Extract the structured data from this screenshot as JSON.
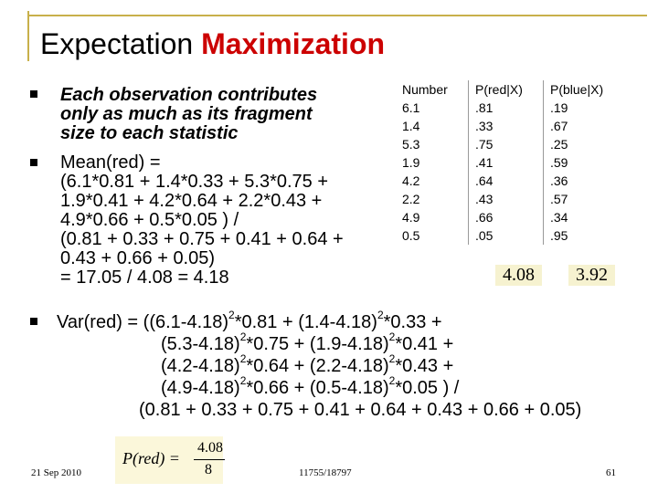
{
  "title": {
    "main": "Expectation",
    "accent": "Maximization"
  },
  "bullets": {
    "b1": {
      "lines": [
        "Each observation contributes",
        "only as much as its fragment",
        "size to each statistic"
      ]
    },
    "b2": {
      "lines": [
        "Mean(red) =",
        "(6.1*0.81 + 1.4*0.33 + 5.3*0.75 +",
        "1.9*0.41 + 4.2*0.64 + 2.2*0.43 +",
        "4.9*0.66 + 0.5*0.05 ) /",
        "(0.81 + 0.33 + 0.75 + 0.41 + 0.64 +",
        "0.43 + 0.66 + 0.05)",
        "= 17.05 / 4.08 = 4.18"
      ]
    },
    "b3": {
      "l1": {
        "a": "Var(red) = ((6.1-4.18)",
        "b": "*0.81 + (1.4-4.18)",
        "c": "*0.33 +"
      },
      "l2": {
        "a": "(5.3-4.18)",
        "b": "*0.75 + (1.9-4.18)",
        "c": "*0.41 +"
      },
      "l3": {
        "a": "(4.2-4.18)",
        "b": "*0.64 + (2.2-4.18)",
        "c": "*0.43 +"
      },
      "l4": {
        "a": "(4.9-4.18)",
        "b": "*0.66 + (0.5-4.18)",
        "c": "*0.05 ) /"
      },
      "l5": "(0.81 + 0.33 + 0.75 + 0.41 + 0.64 + 0.43 + 0.66 + 0.05)",
      "sup": "2"
    }
  },
  "table": {
    "headers": [
      "Number",
      "P(red|X)",
      "P(blue|X)"
    ],
    "number": [
      "6.1",
      "1.4",
      "5.3",
      "1.9",
      "4.2",
      "2.2",
      "4.9",
      "0.5"
    ],
    "p_red": [
      ".81",
      ".33",
      ".75",
      ".41",
      ".64",
      ".43",
      ".66",
      ".05"
    ],
    "p_blue": [
      ".19",
      ".67",
      ".25",
      ".59",
      ".36",
      ".57",
      ".34",
      ".95"
    ],
    "total_red": "4.08",
    "total_blue": "3.92"
  },
  "formula": {
    "lhs": "P(red) =",
    "numerator": "4.08",
    "denominator": "8"
  },
  "footer": {
    "date": "21 Sep 2010",
    "course": "11755/18797",
    "page": "61"
  },
  "colors": {
    "accent": "#cc0000",
    "rule": "#c8b04a"
  }
}
